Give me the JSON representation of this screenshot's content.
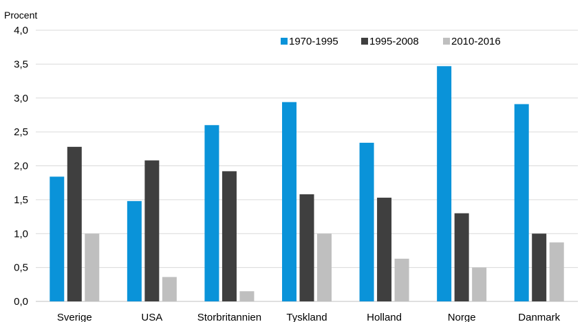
{
  "chart_data": {
    "type": "bar",
    "ylabel": "Procent",
    "ylim": [
      0,
      4
    ],
    "yticks": [
      "0,0",
      "0,5",
      "1,0",
      "1,5",
      "2,0",
      "2,5",
      "3,0",
      "3,5",
      "4,0"
    ],
    "categories": [
      "Sverige",
      "USA",
      "Storbritannien",
      "Tyskland",
      "Holland",
      "Norge",
      "Danmark"
    ],
    "series": [
      {
        "name": "1970-1995",
        "color": "#0A93D9",
        "values": [
          1.84,
          1.48,
          2.6,
          2.94,
          2.34,
          3.47,
          2.91
        ]
      },
      {
        "name": "1995-2008",
        "color": "#3F3F3F",
        "values": [
          2.28,
          2.08,
          1.92,
          1.58,
          1.53,
          1.3,
          1.0
        ]
      },
      {
        "name": "2010-2016",
        "color": "#BFBFBF",
        "values": [
          1.0,
          0.36,
          0.15,
          1.0,
          0.63,
          0.5,
          0.87
        ]
      }
    ],
    "grid": true,
    "legend": "top-right"
  }
}
